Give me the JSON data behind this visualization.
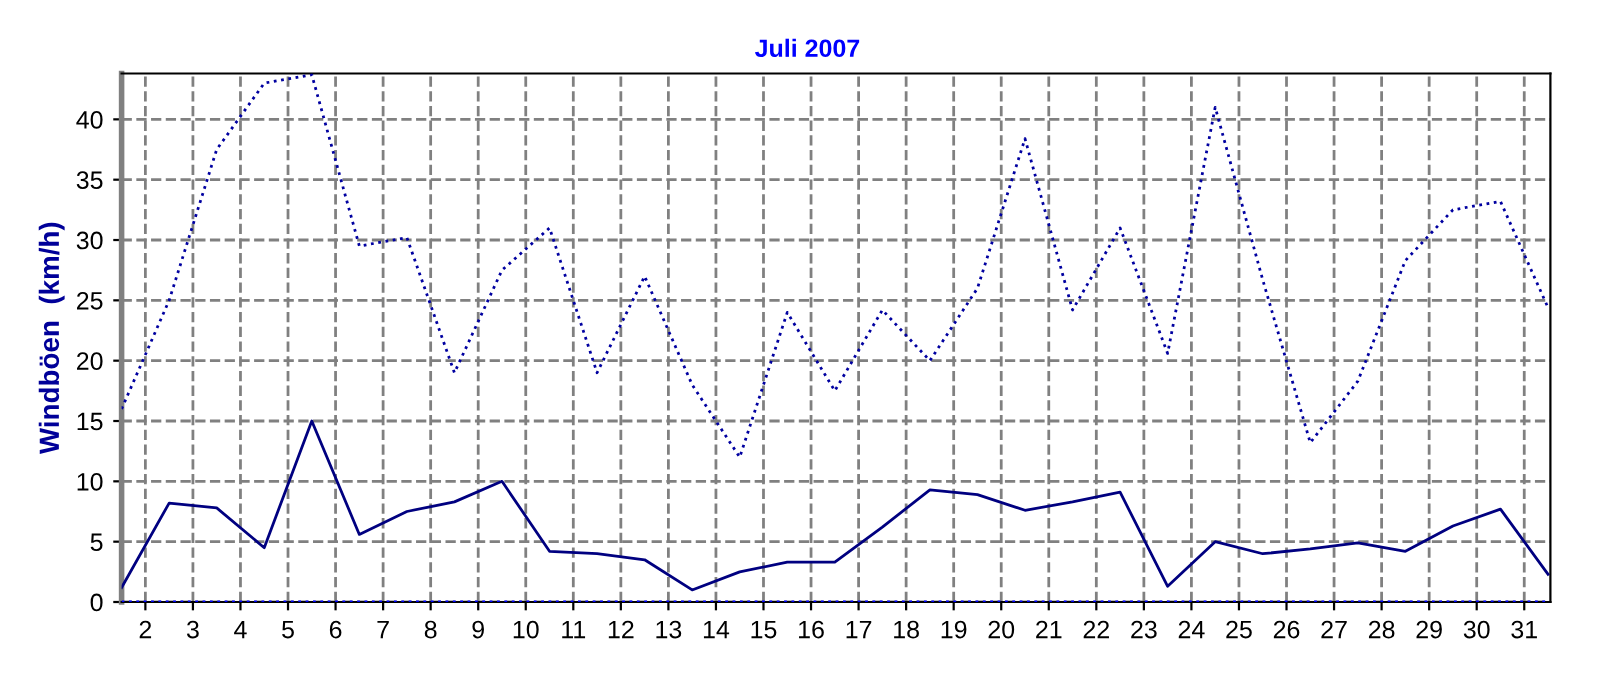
{
  "chart_data": {
    "type": "line",
    "title": "Juli 2007",
    "ylabel": "Windböen  (km/h)",
    "x": [
      1.5,
      2.5,
      3.5,
      4.5,
      5.5,
      6.5,
      7.5,
      8.5,
      9.5,
      10.5,
      11.5,
      12.5,
      13.5,
      14.5,
      15.5,
      16.5,
      17.5,
      18.5,
      19.5,
      20.5,
      21.5,
      22.5,
      23.5,
      24.5,
      25.5,
      26.5,
      27.5,
      28.5,
      29.5,
      30.5,
      31.5
    ],
    "series": [
      {
        "color": "#0000a0",
        "line_style": "dotted",
        "values": [
          16,
          25,
          37.5,
          43,
          43.7,
          29.5,
          30.2,
          19,
          27.5,
          31,
          19,
          27,
          18,
          12,
          24,
          17.5,
          24.2,
          20,
          26,
          38.4,
          24.2,
          31,
          20.6,
          41,
          26.7,
          13.2,
          18.3,
          28.3,
          32.5,
          33.2,
          24.4
        ]
      },
      {
        "color": "#000080",
        "line_style": "solid",
        "values": [
          1.2,
          8.2,
          7.8,
          4.5,
          15,
          5.6,
          7.5,
          8.3,
          10,
          4.2,
          4,
          3.5,
          1,
          2.5,
          3.3,
          3.3,
          6.2,
          9.3,
          8.9,
          7.6,
          8.3,
          9.1,
          1.3,
          5,
          4,
          4.4,
          4.9,
          4.2,
          6.3,
          7.7,
          2.3
        ]
      },
      {
        "color": "#0000ff",
        "line_style": "dotted",
        "values": [
          0,
          0,
          0,
          0,
          0,
          0,
          0,
          0,
          0,
          0,
          0,
          0,
          0,
          0,
          0,
          0,
          0,
          0,
          0,
          0,
          0,
          0,
          0,
          0,
          0,
          0,
          0,
          0,
          0,
          0,
          0
        ]
      }
    ],
    "xlim": [
      1.5,
      31.55
    ],
    "xticks": [
      2,
      3,
      4,
      5,
      6,
      7,
      8,
      9,
      10,
      11,
      12,
      13,
      14,
      15,
      16,
      17,
      18,
      19,
      20,
      21,
      22,
      23,
      24,
      25,
      26,
      27,
      28,
      29,
      30,
      31
    ],
    "ylim": [
      0,
      43.8
    ],
    "yticks": [
      0,
      5,
      10,
      15,
      20,
      25,
      30,
      35,
      40
    ],
    "grid": true,
    "marker": "none"
  }
}
